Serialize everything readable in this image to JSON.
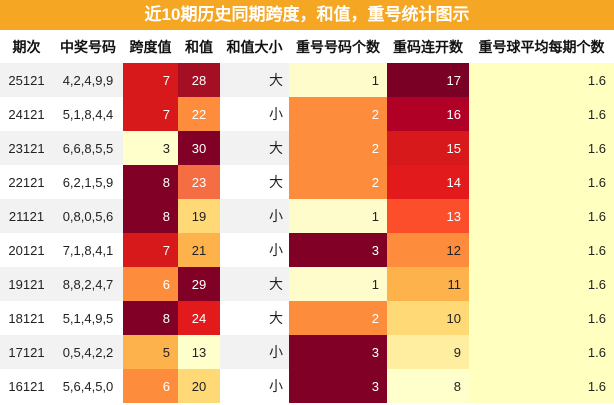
{
  "title": "近10期历史同期跨度，和值，重号统计图示",
  "headers": [
    "期次",
    "中奖号码",
    "跨度值",
    "和值",
    "和值大小",
    "重号号码个数",
    "重码连开数",
    "重号球平均每期个数"
  ],
  "colors": {
    "title_bg": "#f5a623"
  },
  "rows": [
    {
      "issue": "25121",
      "numbers": "4,2,4,9,9",
      "span": "7",
      "sum": "28",
      "size": "大",
      "dup": "1",
      "consec": "17",
      "avg": "1.6",
      "bg": {
        "span": "#d7191c",
        "sum": "#a50f24",
        "dup": "#fffccc",
        "consec": "#7a0026",
        "avg": "#ffffbf"
      },
      "fg": {
        "span": "#ffffff",
        "sum": "#ffffff",
        "dup": "#222222",
        "consec": "#ffffff"
      }
    },
    {
      "issue": "24121",
      "numbers": "5,1,8,4,4",
      "span": "7",
      "sum": "22",
      "size": "小",
      "dup": "2",
      "consec": "16",
      "avg": "1.6",
      "bg": {
        "span": "#d7191c",
        "sum": "#fd8d3c",
        "dup": "#fd8d3c",
        "consec": "#b10026",
        "avg": "#ffffbf"
      },
      "fg": {
        "span": "#ffffff",
        "sum": "#ffffff",
        "dup": "#ffffff",
        "consec": "#ffffff"
      }
    },
    {
      "issue": "23121",
      "numbers": "6,6,8,5,5",
      "span": "3",
      "sum": "30",
      "size": "大",
      "dup": "2",
      "consec": "15",
      "avg": "1.6",
      "bg": {
        "span": "#ffffcc",
        "sum": "#800026",
        "dup": "#fd8d3c",
        "consec": "#d7191c",
        "avg": "#ffffbf"
      },
      "fg": {
        "span": "#222222",
        "sum": "#ffffff",
        "dup": "#ffffff",
        "consec": "#ffffff"
      }
    },
    {
      "issue": "22121",
      "numbers": "6,2,1,5,9",
      "span": "8",
      "sum": "23",
      "size": "大",
      "dup": "2",
      "consec": "14",
      "avg": "1.6",
      "bg": {
        "span": "#800026",
        "sum": "#f46d43",
        "dup": "#fd8d3c",
        "consec": "#e31a1c",
        "avg": "#ffffbf"
      },
      "fg": {
        "span": "#ffffff",
        "sum": "#ffffff",
        "dup": "#ffffff",
        "consec": "#ffffff"
      }
    },
    {
      "issue": "21121",
      "numbers": "0,8,0,5,6",
      "span": "8",
      "sum": "19",
      "size": "小",
      "dup": "1",
      "consec": "13",
      "avg": "1.6",
      "bg": {
        "span": "#800026",
        "sum": "#fed976",
        "dup": "#fffccc",
        "consec": "#fc4e2a",
        "avg": "#ffffbf"
      },
      "fg": {
        "span": "#ffffff",
        "sum": "#222222",
        "dup": "#222222",
        "consec": "#ffffff"
      }
    },
    {
      "issue": "20121",
      "numbers": "7,1,8,4,1",
      "span": "7",
      "sum": "21",
      "size": "小",
      "dup": "3",
      "consec": "12",
      "avg": "1.6",
      "bg": {
        "span": "#d7191c",
        "sum": "#feb24c",
        "dup": "#800026",
        "consec": "#fd8d3c",
        "avg": "#ffffbf"
      },
      "fg": {
        "span": "#ffffff",
        "sum": "#222222",
        "dup": "#ffffff",
        "consec": "#222222"
      }
    },
    {
      "issue": "19121",
      "numbers": "8,8,2,4,7",
      "span": "6",
      "sum": "29",
      "size": "大",
      "dup": "1",
      "consec": "11",
      "avg": "1.6",
      "bg": {
        "span": "#fd8d3c",
        "sum": "#800026",
        "dup": "#fffccc",
        "consec": "#feb24c",
        "avg": "#ffffbf"
      },
      "fg": {
        "span": "#ffffff",
        "sum": "#ffffff",
        "dup": "#222222",
        "consec": "#222222"
      }
    },
    {
      "issue": "18121",
      "numbers": "5,1,4,9,5",
      "span": "8",
      "sum": "24",
      "size": "大",
      "dup": "2",
      "consec": "10",
      "avg": "1.6",
      "bg": {
        "span": "#800026",
        "sum": "#e31a1c",
        "dup": "#fd8d3c",
        "consec": "#fed976",
        "avg": "#ffffbf"
      },
      "fg": {
        "span": "#ffffff",
        "sum": "#ffffff",
        "dup": "#ffffff",
        "consec": "#222222"
      }
    },
    {
      "issue": "17121",
      "numbers": "0,5,4,2,2",
      "span": "5",
      "sum": "13",
      "size": "小",
      "dup": "3",
      "consec": "9",
      "avg": "1.6",
      "bg": {
        "span": "#feb24c",
        "sum": "#ffffcc",
        "dup": "#800026",
        "consec": "#ffeda0",
        "avg": "#ffffbf"
      },
      "fg": {
        "span": "#222222",
        "sum": "#222222",
        "dup": "#ffffff",
        "consec": "#222222"
      }
    },
    {
      "issue": "16121",
      "numbers": "5,6,4,5,0",
      "span": "6",
      "sum": "20",
      "size": "小",
      "dup": "3",
      "consec": "8",
      "avg": "1.6",
      "bg": {
        "span": "#fd8d3c",
        "sum": "#fed976",
        "dup": "#800026",
        "consec": "#ffffcc",
        "avg": "#ffffbf"
      },
      "fg": {
        "span": "#ffffff",
        "sum": "#222222",
        "dup": "#ffffff",
        "consec": "#222222"
      }
    }
  ]
}
